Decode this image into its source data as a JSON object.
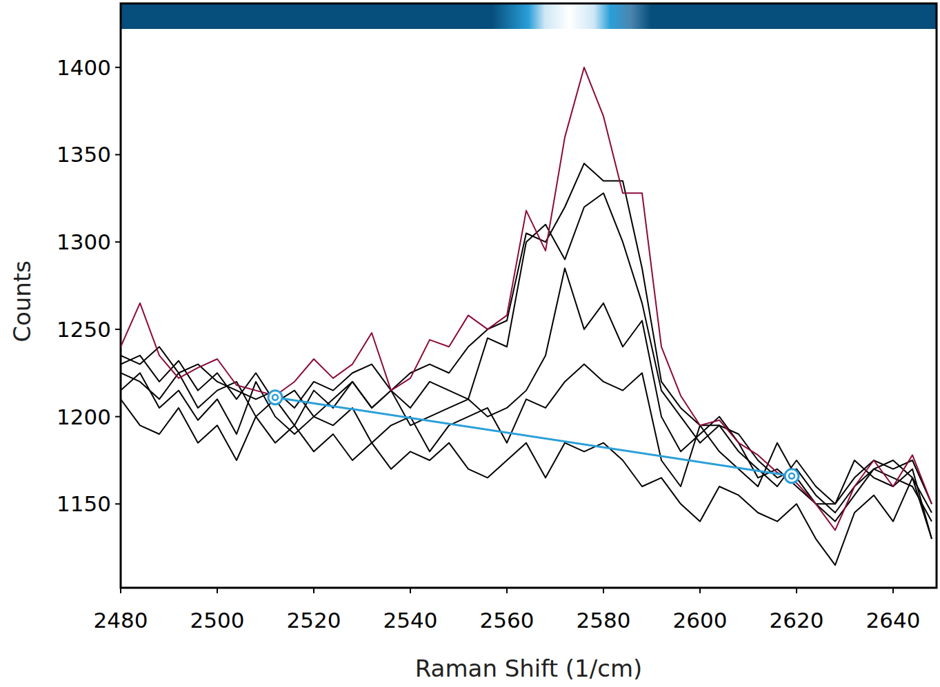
{
  "chart_data": {
    "type": "line",
    "x_label": "Raman Shift (1/cm)",
    "y_label": "Counts",
    "xlim": [
      2480,
      2649
    ],
    "ylim": [
      1102,
      1422
    ],
    "xticks": [
      2480,
      2500,
      2520,
      2540,
      2560,
      2580,
      2600,
      2620,
      2640
    ],
    "yticks": [
      1150,
      1200,
      1250,
      1300,
      1350,
      1400
    ],
    "grid": false,
    "x": [
      2480,
      2484,
      2488,
      2492,
      2496,
      2500,
      2504,
      2508,
      2512,
      2516,
      2520,
      2524,
      2528,
      2532,
      2536,
      2540,
      2544,
      2548,
      2552,
      2556,
      2560,
      2564,
      2568,
      2572,
      2576,
      2580,
      2584,
      2588,
      2592,
      2596,
      2600,
      2604,
      2608,
      2612,
      2616,
      2620,
      2624,
      2628,
      2632,
      2636,
      2640,
      2644,
      2648
    ],
    "series": [
      {
        "color": "#000000",
        "values": [
          1235,
          1230,
          1240,
          1225,
          1230,
          1220,
          1215,
          1210,
          1215,
          1205,
          1220,
          1215,
          1225,
          1230,
          1215,
          1225,
          1230,
          1225,
          1240,
          1250,
          1255,
          1305,
          1300,
          1320,
          1345,
          1335,
          1335,
          1285,
          1220,
          1205,
          1195,
          1195,
          1180,
          1170,
          1160,
          1175,
          1160,
          1150,
          1165,
          1175,
          1170,
          1175,
          1150
        ]
      },
      {
        "color": "#000000",
        "values": [
          1230,
          1235,
          1220,
          1232,
          1215,
          1225,
          1210,
          1225,
          1208,
          1215,
          1200,
          1210,
          1220,
          1205,
          1215,
          1205,
          1220,
          1215,
          1210,
          1245,
          1240,
          1300,
          1310,
          1290,
          1320,
          1328,
          1300,
          1265,
          1215,
          1200,
          1185,
          1195,
          1190,
          1175,
          1165,
          1170,
          1155,
          1145,
          1160,
          1170,
          1175,
          1165,
          1145
        ]
      },
      {
        "color": "#000000",
        "values": [
          1225,
          1220,
          1210,
          1225,
          1205,
          1215,
          1220,
          1200,
          1210,
          1195,
          1215,
          1205,
          1220,
          1205,
          1215,
          1195,
          1200,
          1205,
          1210,
          1200,
          1205,
          1215,
          1235,
          1285,
          1250,
          1265,
          1240,
          1255,
          1200,
          1180,
          1190,
          1200,
          1185,
          1165,
          1170,
          1160,
          1150,
          1150,
          1175,
          1165,
          1160,
          1170,
          1130
        ]
      },
      {
        "color": "#000000",
        "values": [
          1215,
          1225,
          1205,
          1215,
          1198,
          1210,
          1190,
          1220,
          1200,
          1190,
          1200,
          1195,
          1205,
          1185,
          1195,
          1200,
          1180,
          1195,
          1200,
          1205,
          1185,
          1210,
          1205,
          1220,
          1230,
          1220,
          1215,
          1225,
          1175,
          1160,
          1195,
          1180,
          1170,
          1160,
          1185,
          1165,
          1150,
          1140,
          1155,
          1170,
          1165,
          1160,
          1140
        ]
      },
      {
        "color": "#000000",
        "values": [
          1210,
          1195,
          1190,
          1205,
          1185,
          1195,
          1175,
          1200,
          1185,
          1195,
          1180,
          1190,
          1175,
          1185,
          1170,
          1180,
          1175,
          1185,
          1170,
          1165,
          1175,
          1185,
          1165,
          1185,
          1180,
          1185,
          1175,
          1160,
          1165,
          1150,
          1140,
          1160,
          1155,
          1145,
          1140,
          1150,
          1130,
          1115,
          1145,
          1155,
          1140,
          1165,
          1130
        ]
      },
      {
        "color": "#8b0a3c",
        "values": [
          1240,
          1265,
          1235,
          1222,
          1228,
          1233,
          1218,
          1215,
          1212,
          1220,
          1233,
          1222,
          1230,
          1248,
          1215,
          1222,
          1244,
          1240,
          1258,
          1250,
          1258,
          1318,
          1295,
          1360,
          1400,
          1372,
          1328,
          1328,
          1240,
          1212,
          1195,
          1198,
          1185,
          1178,
          1168,
          1162,
          1150,
          1135,
          1160,
          1175,
          1160,
          1178,
          1150
        ]
      },
      {
        "color": "#2a9fd8",
        "marker": "circle",
        "x": [
          2512,
          2619
        ],
        "values": [
          1211,
          1166
        ]
      }
    ]
  }
}
